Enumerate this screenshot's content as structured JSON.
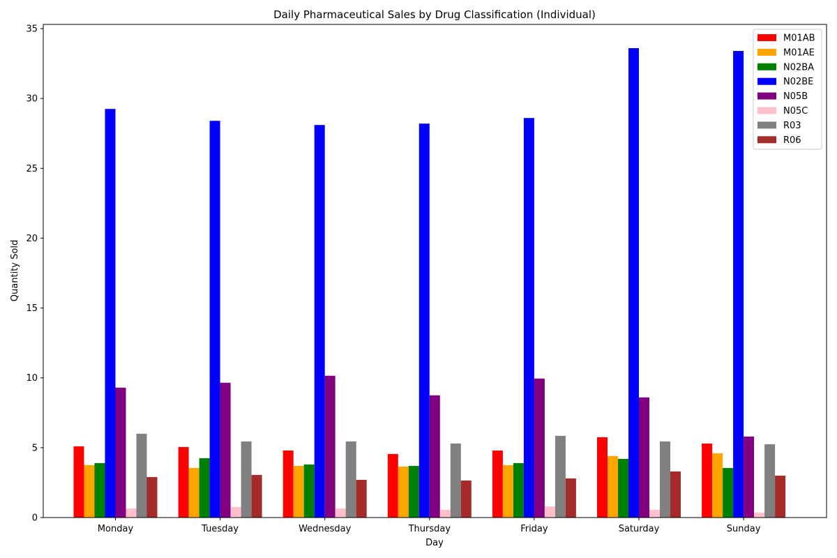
{
  "chart_data": {
    "type": "bar",
    "title": "Daily Pharmaceutical Sales by Drug Classification (Individual)",
    "xlabel": "Day",
    "ylabel": "Quantity Sold",
    "ylim": [
      0,
      35.3
    ],
    "yticks": [
      0,
      5,
      10,
      15,
      20,
      25,
      30,
      35
    ],
    "legend_position": "top-right",
    "grid": false,
    "categories": [
      "Monday",
      "Tuesday",
      "Wednesday",
      "Thursday",
      "Friday",
      "Saturday",
      "Sunday"
    ],
    "series": [
      {
        "name": "M01AB",
        "color": "#ff0000",
        "values": [
          5.1,
          5.05,
          4.8,
          4.55,
          4.8,
          5.75,
          5.3
        ]
      },
      {
        "name": "M01AE",
        "color": "#ffa500",
        "values": [
          3.75,
          3.55,
          3.7,
          3.65,
          3.75,
          4.4,
          4.6
        ]
      },
      {
        "name": "N02BA",
        "color": "#008000",
        "values": [
          3.9,
          4.25,
          3.8,
          3.7,
          3.9,
          4.2,
          3.55
        ]
      },
      {
        "name": "N02BE",
        "color": "#0000ff",
        "values": [
          29.25,
          28.4,
          28.1,
          28.2,
          28.6,
          33.6,
          33.4
        ]
      },
      {
        "name": "N05B",
        "color": "#800080",
        "values": [
          9.3,
          9.65,
          10.15,
          8.75,
          9.95,
          8.6,
          5.8
        ]
      },
      {
        "name": "N05C",
        "color": "#ffc0cb",
        "values": [
          0.65,
          0.75,
          0.65,
          0.55,
          0.8,
          0.55,
          0.35
        ]
      },
      {
        "name": "R03",
        "color": "#808080",
        "values": [
          6.0,
          5.45,
          5.45,
          5.3,
          5.85,
          5.45,
          5.25
        ]
      },
      {
        "name": "R06",
        "color": "#a52a2a",
        "values": [
          2.9,
          3.05,
          2.7,
          2.65,
          2.8,
          3.3,
          3.0
        ]
      }
    ]
  }
}
